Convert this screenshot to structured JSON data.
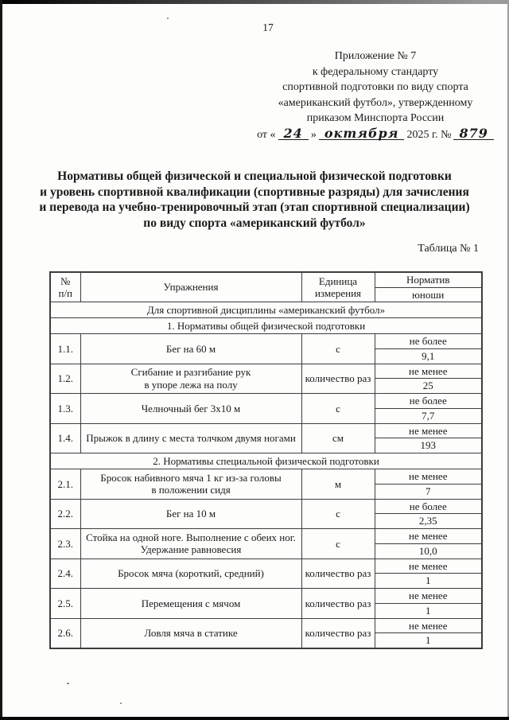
{
  "page": {
    "number": "17"
  },
  "appendix": {
    "lines": [
      "Приложение № 7",
      "к федеральному стандарту",
      "спортивной подготовки по виду спорта",
      "«американский футбол», утвержденному",
      "приказом Минспорта России"
    ],
    "date": {
      "prefix": "от «",
      "day": "24",
      "after_day": "»",
      "month": "октября",
      "year": "2025 г. №",
      "number": "879"
    }
  },
  "title": {
    "lines": [
      "Нормативы общей физической и специальной физической подготовки",
      "и уровень спортивной квалификации (спортивные разряды) для зачисления",
      "и перевода на учебно-тренировочный этап (этап спортивной специализации)",
      "по виду спорта «американский футбол»"
    ]
  },
  "table": {
    "caption": "Таблица № 1",
    "header": {
      "num": "№\nп/п",
      "exercise": "Упражнения",
      "unit": "Единица\nизмерения",
      "norm": "Норматив",
      "group": "юноши"
    },
    "rows": [
      {
        "type": "section",
        "label": "Для спортивной дисциплины «американский футбол»"
      },
      {
        "type": "section",
        "label": "1. Нормативы общей физической подготовки"
      },
      {
        "type": "data",
        "num": "1.1.",
        "exercise": "Бег на 60 м",
        "unit": "с",
        "condition": "не более",
        "value": "9,1"
      },
      {
        "type": "data",
        "num": "1.2.",
        "exercise": "Сгибание и разгибание рук\nв упоре лежа на полу",
        "unit": "количество раз",
        "condition": "не менее",
        "value": "25"
      },
      {
        "type": "data",
        "num": "1.3.",
        "exercise": "Челночный бег 3х10 м",
        "unit": "с",
        "condition": "не более",
        "value": "7,7"
      },
      {
        "type": "data",
        "num": "1.4.",
        "exercise": "Прыжок в длину с места толчком двумя ногами",
        "unit": "см",
        "condition": "не менее",
        "value": "193"
      },
      {
        "type": "section",
        "label": "2. Нормативы специальной физической подготовки"
      },
      {
        "type": "data",
        "num": "2.1.",
        "exercise": "Бросок набивного мяча 1 кг из-за головы\nв положении сидя",
        "unit": "м",
        "condition": "не менее",
        "value": "7"
      },
      {
        "type": "data",
        "num": "2.2.",
        "exercise": "Бег на 10 м",
        "unit": "с",
        "condition": "не более",
        "value": "2,35"
      },
      {
        "type": "data",
        "num": "2.3.",
        "exercise": "Стойка на одной ноге. Выполнение с обеих ног.\nУдержание равновесия",
        "unit": "с",
        "condition": "не менее",
        "value": "10,0"
      },
      {
        "type": "data",
        "num": "2.4.",
        "exercise": "Бросок мяча (короткий, средний)",
        "unit": "количество раз",
        "condition": "не менее",
        "value": "1"
      },
      {
        "type": "data",
        "num": "2.5.",
        "exercise": "Перемещения с мячом",
        "unit": "количество раз",
        "condition": "не менее",
        "value": "1"
      },
      {
        "type": "data",
        "num": "2.6.",
        "exercise": "Ловля мяча в статике",
        "unit": "количество раз",
        "condition": "не менее",
        "value": "1"
      }
    ]
  },
  "colors": {
    "ink": "#1a1a1a",
    "table_border": "#3d3d3d",
    "scan_edge": "#070707"
  }
}
